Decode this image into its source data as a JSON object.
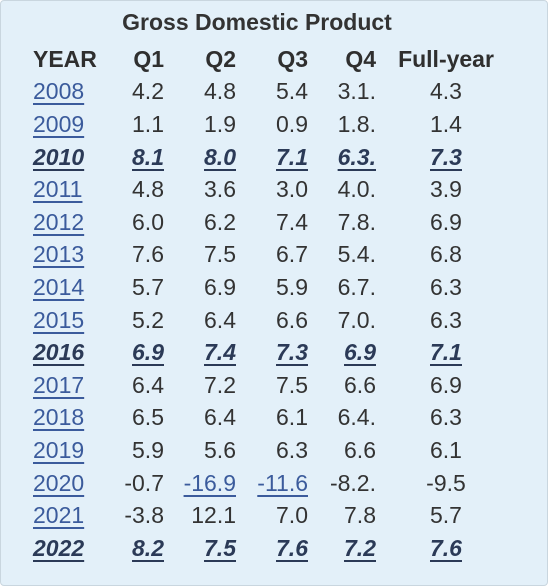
{
  "title": "Gross Domestic Product",
  "table": {
    "header": [
      "YEAR",
      "Q1",
      "Q2",
      "Q3",
      "Q4",
      "Full-year"
    ],
    "rows": [
      [
        "2008",
        "4.2",
        "4.8",
        "5.4",
        "3.1.",
        "4.3"
      ],
      [
        "2009",
        "1.1",
        "1.9",
        "0.9",
        "1.8.",
        "1.4"
      ],
      [
        "2010",
        "8.1",
        "8.0",
        "7.1",
        "6.3.",
        "7.3"
      ],
      [
        "2011",
        "4.8",
        "3.6",
        "3.0",
        "4.0.",
        "3.9"
      ],
      [
        "2012",
        "6.0",
        "6.2",
        "7.4",
        "7.8.",
        "6.9"
      ],
      [
        "2013",
        "7.6",
        "7.5",
        "6.7",
        "5.4.",
        "6.8"
      ],
      [
        "2014",
        "5.7",
        "6.9",
        "5.9",
        "6.7.",
        "6.3"
      ],
      [
        "2015",
        "5.2",
        "6.4",
        "6.6",
        "7.0.",
        "6.3"
      ],
      [
        "2016",
        "6.9",
        "7.4",
        "7.3",
        "6.9",
        "7.1"
      ],
      [
        "2017",
        "6.4",
        "7.2",
        "7.5",
        "6.6",
        "6.9"
      ],
      [
        "2018",
        "6.5",
        "6.4",
        "6.1",
        "6.4.",
        "6.3"
      ],
      [
        "2019",
        "5.9",
        "5.6",
        "6.3",
        "6.6",
        "6.1"
      ],
      [
        "2020",
        "-0.7",
        "-16.9",
        "-11.6",
        "-8.2.",
        "-9.5"
      ],
      [
        "2021",
        "-3.8",
        "12.1",
        "7.0",
        "7.8",
        "5.7"
      ],
      [
        "2022",
        "8.2",
        "7.5",
        "7.6",
        "7.2",
        "7.6"
      ]
    ]
  }
}
